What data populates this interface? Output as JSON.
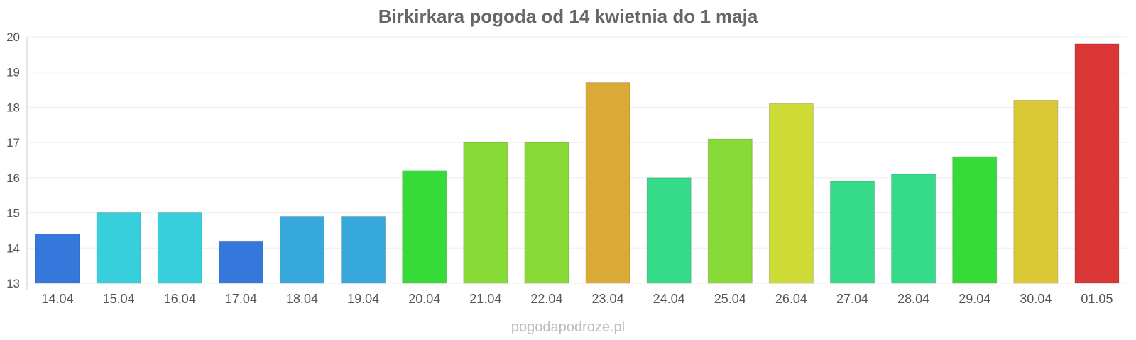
{
  "chart_data": {
    "type": "bar",
    "title": "Birkirkara pogoda od 14 kwietnia do 1 maja",
    "xlabel": "",
    "ylabel": "",
    "categories": [
      "14.04",
      "15.04",
      "16.04",
      "17.04",
      "18.04",
      "19.04",
      "20.04",
      "21.04",
      "22.04",
      "23.04",
      "24.04",
      "25.04",
      "26.04",
      "27.04",
      "28.04",
      "29.04",
      "30.04",
      "01.05"
    ],
    "values": [
      14.4,
      15.0,
      15.0,
      14.2,
      14.9,
      14.9,
      16.2,
      17.0,
      17.0,
      18.7,
      16.0,
      17.1,
      18.1,
      15.9,
      16.1,
      16.6,
      18.2,
      19.8
    ],
    "colors": [
      "#3577DB",
      "#36CFDB",
      "#36CFDB",
      "#3577DB",
      "#37A8DB",
      "#37A8DB",
      "#36DB38",
      "#88DB36",
      "#88DB36",
      "#DBA936",
      "#36DB8A",
      "#88DB36",
      "#CEDB36",
      "#36DB8A",
      "#36DB8A",
      "#36DB38",
      "#DBCA36",
      "#DB3636"
    ],
    "ylim": [
      13,
      20
    ],
    "yticks": [
      13,
      14,
      15,
      16,
      17,
      18,
      19,
      20
    ],
    "grid": true,
    "legend": "none"
  },
  "watermark": "pogodapodroze.pl"
}
